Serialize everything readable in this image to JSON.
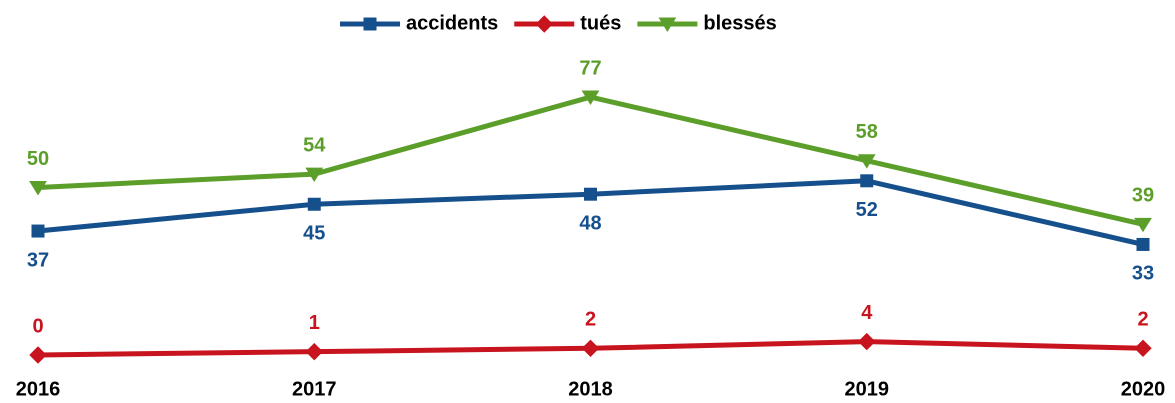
{
  "chart_data": {
    "type": "line",
    "x": [
      "2016",
      "2017",
      "2018",
      "2019",
      "2020"
    ],
    "series": [
      {
        "name": "accidents",
        "color": "#16508c",
        "marker": "square",
        "values": [
          37,
          45,
          48,
          52,
          33
        ]
      },
      {
        "name": "tués",
        "color": "#c8141e",
        "marker": "diamond",
        "values": [
          0,
          1,
          2,
          4,
          2
        ]
      },
      {
        "name": "blessés",
        "color": "#5c9e2a",
        "marker": "triangle-down",
        "values": [
          50,
          54,
          77,
          58,
          39
        ]
      }
    ],
    "ylim": [
      0,
      80
    ],
    "legend": "top"
  }
}
